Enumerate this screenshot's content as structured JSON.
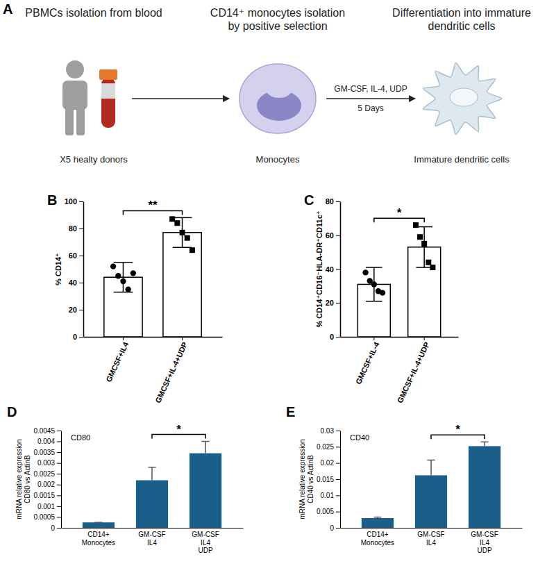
{
  "diagram": {
    "panel_label": "A",
    "steps": [
      {
        "title": "PBMCs isolation from blood",
        "caption": "X5 healty donors"
      },
      {
        "title": "CD14⁺ monocytes isolation by positive selection",
        "caption": "Monocytes"
      },
      {
        "title": "Differentiation into immature dendritic cells",
        "caption": "Immature dendritic cells"
      }
    ],
    "treatment": {
      "above": "GM-CSF, IL-4, UDP",
      "below": "5 Days"
    }
  },
  "chart_data": [
    {
      "panel_label": "B",
      "type": "bar",
      "categories": [
        "GMCSF+IL4",
        "GMCSF+IL-4+UDP"
      ],
      "values": [
        44,
        77
      ],
      "errors": [
        11,
        11
      ],
      "points": [
        {
          "marker": "circle",
          "values": [
            52,
            45,
            41,
            35,
            47
          ]
        },
        {
          "marker": "square",
          "values": [
            87,
            84,
            77,
            73,
            64
          ]
        }
      ],
      "color": "#ffffff",
      "y_label": "% CD14⁺",
      "ylim": [
        0,
        100
      ],
      "yticks": [
        0,
        20,
        40,
        60,
        80,
        100
      ],
      "annotations": [
        {
          "text": "**",
          "between": [
            "GMCSF+IL4",
            "GMCSF+IL-4+UDP"
          ]
        }
      ]
    },
    {
      "panel_label": "C",
      "type": "bar",
      "categories": [
        "GMCSF+IL-4",
        "GMCSF+IL-4+UDP"
      ],
      "values": [
        31,
        53
      ],
      "errors": [
        10,
        12
      ],
      "points": [
        {
          "marker": "circle",
          "values": [
            38,
            33,
            31,
            27,
            26
          ]
        },
        {
          "marker": "square",
          "values": [
            66,
            59,
            55,
            44,
            41
          ]
        }
      ],
      "color": "#ffffff",
      "y_label": "% CD14⁺CD16⁻HLA-DR⁺CD11c⁺",
      "ylim": [
        0,
        80
      ],
      "yticks": [
        0,
        20,
        40,
        60,
        80
      ],
      "annotations": [
        {
          "text": "*",
          "between": [
            "GMCSF+IL-4",
            "GMCSF+IL-4+UDP"
          ]
        }
      ]
    },
    {
      "panel_label": "D",
      "type": "bar",
      "title": "CD80",
      "categories": [
        "CD14+ Monocytes",
        "GM-CSF IL4",
        "GM-CSF IL4 UDP"
      ],
      "values": [
        0.00025,
        0.0022,
        0.00345
      ],
      "errors": [
        0,
        0.0006,
        0.00055
      ],
      "color": "#1a5e8a",
      "y_label": "mRNA relative expression CD80 vs ActinB",
      "ylim": [
        0,
        0.0045
      ],
      "yticks": [
        0,
        0.0005,
        0.001,
        0.0015,
        0.002,
        0.0025,
        0.003,
        0.0035,
        0.004,
        0.0045
      ],
      "annotations": [
        {
          "text": "*",
          "between": [
            "GM-CSF IL4",
            "GM-CSF IL4 UDP"
          ]
        }
      ]
    },
    {
      "panel_label": "E",
      "type": "bar",
      "title": "CD40",
      "categories": [
        "CD14+ Monocytes",
        "GM-CSF IL4",
        "GM-CSF IL4 UDP"
      ],
      "values": [
        0.003,
        0.0162,
        0.0252
      ],
      "errors": [
        0.0003,
        0.0047,
        0.0013
      ],
      "color": "#1a5e8a",
      "y_label": "mRNA relative expression CD40 vs ActinB",
      "ylim": [
        0,
        0.03
      ],
      "yticks": [
        0,
        0.005,
        0.01,
        0.015,
        0.02,
        0.025,
        0.03
      ],
      "annotations": [
        {
          "text": "*",
          "between": [
            "GM-CSF IL4",
            "GM-CSF IL4 UDP"
          ]
        }
      ]
    }
  ]
}
